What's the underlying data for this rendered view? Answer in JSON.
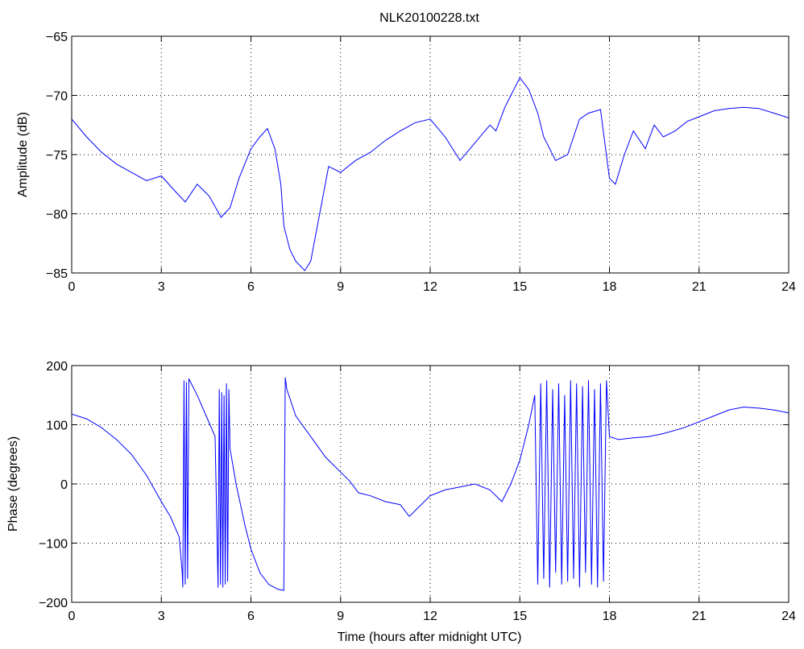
{
  "chart_data": [
    {
      "type": "line",
      "title": "NLK20100228.txt",
      "xlabel": "",
      "ylabel": "Amplitude (dB)",
      "xlim": [
        0,
        24
      ],
      "ylim": [
        -85,
        -65
      ],
      "xticks": [
        "0",
        "3",
        "6",
        "9",
        "12",
        "15",
        "18",
        "21",
        "24"
      ],
      "yticks": [
        "−85",
        "−80",
        "−75",
        "−70",
        "−65"
      ],
      "grid": true,
      "line_color": "#0000ff",
      "series": [
        {
          "x": [
            0,
            0.5,
            1,
            1.5,
            2,
            2.5,
            3,
            3.5,
            3.8,
            4.2,
            4.6,
            5,
            5.3,
            5.6,
            6,
            6.3,
            6.55,
            6.8,
            7,
            7.1,
            7.3,
            7.5,
            7.8,
            8,
            8.3,
            8.6,
            9,
            9.5,
            10,
            10.5,
            11,
            11.5,
            12,
            12.5,
            13,
            13.5,
            14,
            14.2,
            14.5,
            14.8,
            15,
            15.3,
            15.6,
            15.8,
            16.2,
            16.6,
            17,
            17.3,
            17.7,
            18,
            18.2,
            18.5,
            18.8,
            19.2,
            19.5,
            19.8,
            20.2,
            20.6,
            21,
            21.5,
            22,
            22.5,
            23,
            23.5,
            24
          ],
          "y": [
            -72,
            -73.5,
            -74.8,
            -75.8,
            -76.5,
            -77.2,
            -76.8,
            -78.2,
            -79,
            -77.5,
            -78.5,
            -80.3,
            -79.5,
            -77,
            -74.5,
            -73.5,
            -72.8,
            -74.5,
            -77.5,
            -81,
            -83,
            -84,
            -84.8,
            -84,
            -80,
            -76,
            -76.5,
            -75.5,
            -74.8,
            -73.8,
            -73,
            -72.3,
            -72,
            -73.5,
            -75.5,
            -74,
            -72.5,
            -73,
            -71,
            -69.5,
            -68.5,
            -69.5,
            -71.5,
            -73.5,
            -75.5,
            -75,
            -72,
            -71.5,
            -71.2,
            -77,
            -77.5,
            -75,
            -73,
            -74.5,
            -72.5,
            -73.5,
            -73,
            -72.2,
            -71.8,
            -71.3,
            -71.1,
            -71,
            -71.1,
            -71.5,
            -71.9
          ]
        }
      ]
    },
    {
      "type": "line",
      "title": "",
      "xlabel": "Time (hours after midnight UTC)",
      "ylabel": "Phase (degrees)",
      "xlim": [
        0,
        24
      ],
      "ylim": [
        -200,
        200
      ],
      "xticks": [
        "0",
        "3",
        "6",
        "9",
        "12",
        "15",
        "18",
        "21",
        "24"
      ],
      "yticks": [
        "−200",
        "−100",
        "0",
        "100",
        "200"
      ],
      "grid": true,
      "line_color": "#0000ff",
      "series": [
        {
          "x": [
            0,
            0.5,
            1,
            1.5,
            2,
            2.5,
            3,
            3.3,
            3.6,
            3.7,
            3.72,
            3.76,
            3.8,
            3.84,
            3.88,
            3.92,
            4,
            4.2,
            4.5,
            4.8,
            4.9,
            4.94,
            4.98,
            5.02,
            5.06,
            5.1,
            5.14,
            5.18,
            5.22,
            5.26,
            5.3,
            5.5,
            5.8,
            6,
            6.3,
            6.6,
            6.9,
            7.1,
            7.15,
            7.2,
            7.5,
            8,
            8.5,
            9,
            9.3,
            9.6,
            10,
            10.5,
            11,
            11.3,
            11.6,
            12,
            12.5,
            13,
            13.5,
            14,
            14.4,
            14.7,
            15,
            15.3,
            15.5,
            15.6,
            15.7,
            15.8,
            15.9,
            16,
            16.1,
            16.2,
            16.3,
            16.4,
            16.5,
            16.6,
            16.7,
            16.8,
            16.9,
            17,
            17.1,
            17.2,
            17.3,
            17.4,
            17.5,
            17.6,
            17.7,
            17.8,
            17.9,
            18,
            18.3,
            18.8,
            19.3,
            19.8,
            20.5,
            21,
            21.5,
            22,
            22.5,
            23,
            23.5,
            24
          ],
          "y": [
            118,
            110,
            95,
            75,
            50,
            15,
            -30,
            -55,
            -90,
            -150,
            -175,
            175,
            -170,
            172,
            -160,
            178,
            170,
            150,
            115,
            80,
            -175,
            160,
            -170,
            155,
            -175,
            150,
            -170,
            170,
            -165,
            160,
            60,
            0,
            -70,
            -110,
            -150,
            -170,
            -178,
            -180,
            180,
            160,
            115,
            80,
            45,
            20,
            5,
            -15,
            -20,
            -30,
            -35,
            -55,
            -40,
            -20,
            -10,
            -5,
            0,
            -10,
            -30,
            0,
            40,
            100,
            150,
            -170,
            170,
            -160,
            175,
            -175,
            160,
            -150,
            170,
            -170,
            150,
            -165,
            175,
            -160,
            170,
            -175,
            165,
            -150,
            175,
            -170,
            160,
            -175,
            170,
            -165,
            175,
            80,
            75,
            78,
            80,
            85,
            95,
            105,
            115,
            125,
            130,
            128,
            125,
            120
          ]
        }
      ]
    }
  ]
}
